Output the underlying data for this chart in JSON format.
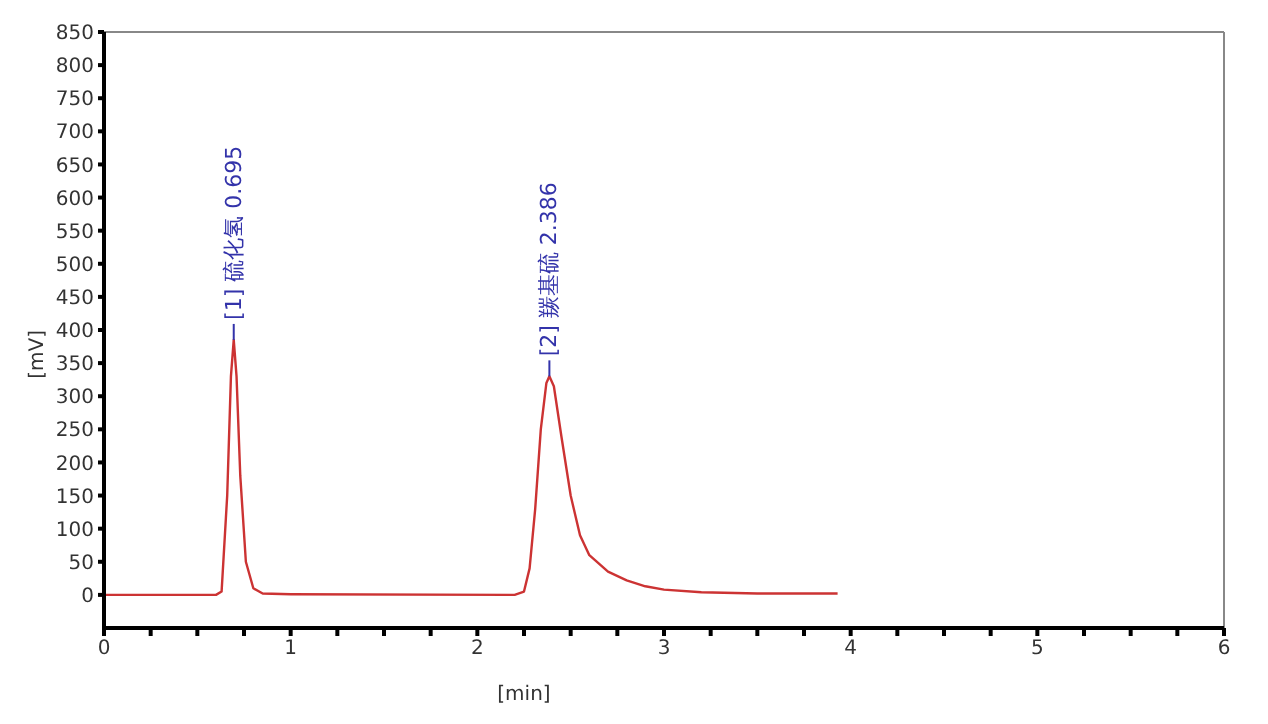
{
  "chart_data": {
    "type": "line",
    "xlabel": "[min]",
    "ylabel": "[mV]",
    "xlim": [
      0,
      6
    ],
    "ylim": [
      -50,
      850
    ],
    "xticks": [
      0,
      {
        "value": 0.25,
        "label": null
      },
      {
        "value": 0.5,
        "label": null
      },
      {
        "value": 0.75,
        "label": null
      },
      1,
      {
        "value": 1.25,
        "label": null
      },
      {
        "value": 1.5,
        "label": null
      },
      {
        "value": 1.75,
        "label": null
      },
      2,
      {
        "value": 2.25,
        "label": null
      },
      {
        "value": 2.5,
        "label": null
      },
      {
        "value": 2.75,
        "label": null
      },
      3,
      {
        "value": 3.25,
        "label": null
      },
      {
        "value": 3.5,
        "label": null
      },
      {
        "value": 3.75,
        "label": null
      },
      4,
      {
        "value": 4.25,
        "label": null
      },
      {
        "value": 4.5,
        "label": null
      },
      {
        "value": 4.75,
        "label": null
      },
      5,
      {
        "value": 5.25,
        "label": null
      },
      {
        "value": 5.5,
        "label": null
      },
      {
        "value": 5.75,
        "label": null
      },
      6
    ],
    "yticks": [
      0,
      50,
      100,
      150,
      200,
      250,
      300,
      350,
      400,
      450,
      500,
      550,
      600,
      650,
      700,
      750,
      800,
      850
    ],
    "grid": false,
    "marker": "none",
    "line_style": "solid",
    "series": [
      {
        "color": "#cc3333",
        "x": [
          0,
          0.6,
          0.63,
          0.66,
          0.68,
          0.695,
          0.71,
          0.73,
          0.76,
          0.8,
          0.85,
          1.0,
          2.2,
          2.25,
          2.28,
          2.31,
          2.34,
          2.37,
          2.386,
          2.41,
          2.45,
          2.5,
          2.55,
          2.6,
          2.7,
          2.8,
          2.9,
          3.0,
          3.2,
          3.5,
          3.93
        ],
        "values": [
          0,
          0,
          5,
          150,
          330,
          385,
          330,
          180,
          50,
          10,
          2,
          1,
          0,
          5,
          40,
          130,
          250,
          320,
          330,
          315,
          240,
          150,
          90,
          60,
          35,
          22,
          13,
          8,
          4,
          2,
          2
        ]
      }
    ],
    "annotations": [
      {
        "text": "[1] 硫化氢 0.695",
        "x": 0.695,
        "y": 385
      },
      {
        "text": "[2] 羰基硫 2.386",
        "x": 2.386,
        "y": 330
      }
    ]
  }
}
